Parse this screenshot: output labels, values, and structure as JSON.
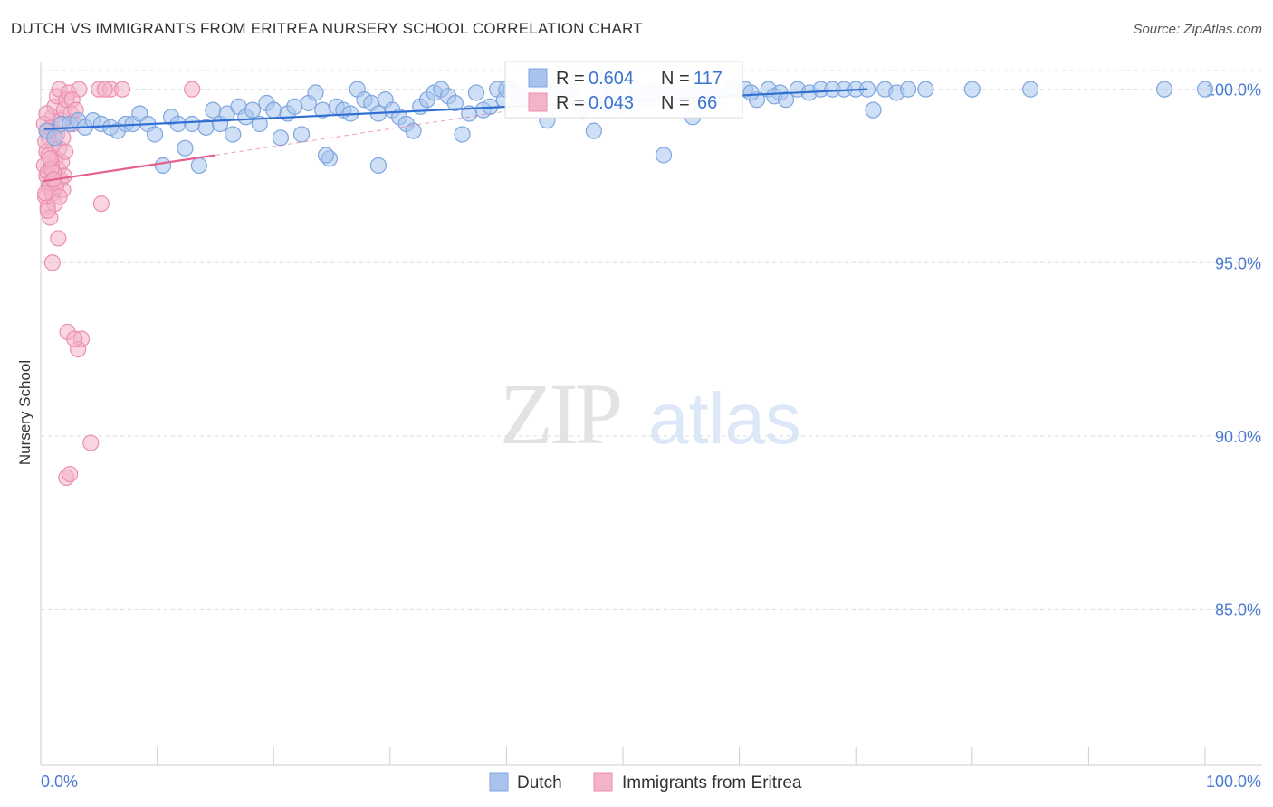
{
  "header": {
    "title": "DUTCH VS IMMIGRANTS FROM ERITREA NURSERY SCHOOL CORRELATION CHART",
    "source": "Source: ZipAtlas.com"
  },
  "watermark": {
    "zip": "ZIP",
    "atlas": "atlas"
  },
  "legend_box": {
    "r_label": "R =",
    "n_label": "N =",
    "rows": [
      {
        "r": "0.604",
        "n": "117"
      },
      {
        "r": "0.043",
        "n": "66"
      }
    ]
  },
  "bottom_legend": [
    "Dutch",
    "Immigrants from Eritrea"
  ],
  "colors": {
    "dutch_fill": "#a8c4ec",
    "dutch_stroke": "#7fa6df",
    "dutch_line": "#2e6fd1",
    "eritrea_fill": "#f4b3c8",
    "eritrea_stroke": "#ea8fb0",
    "eritrea_line": "#e5608e",
    "tick_text": "#4a7bd0"
  },
  "chart_data": {
    "type": "scatter",
    "ylabel": "Nursery School",
    "xlim": [
      0,
      100
    ],
    "ylim": [
      80.5,
      100.8
    ],
    "y_ticks": [
      {
        "v": 85,
        "label": "85.0%"
      },
      {
        "v": 90,
        "label": "90.0%"
      },
      {
        "v": 95,
        "label": "95.0%"
      },
      {
        "v": 100,
        "label": "100.0%"
      }
    ],
    "x_tick_labels": [
      {
        "v": 0,
        "label": "0.0%"
      },
      {
        "v": 100,
        "label": "100.0%"
      }
    ],
    "x_minor_ticks": [
      0,
      10,
      20,
      30,
      40,
      50,
      60,
      70,
      80,
      90,
      100
    ],
    "grid": "horizontal dashed",
    "legend_position": "bottom",
    "series": [
      {
        "name": "Dutch",
        "r": 0.604,
        "n": 117,
        "trend": {
          "x": [
            0.3,
            71
          ],
          "y": [
            98.85,
            100.0
          ],
          "extrapolated_x": null
        },
        "points": [
          [
            0.5,
            98.8
          ],
          [
            1.2,
            98.6
          ],
          [
            1.8,
            99.0
          ],
          [
            2.5,
            99.0
          ],
          [
            3.2,
            99.1
          ],
          [
            3.8,
            98.9
          ],
          [
            4.5,
            99.1
          ],
          [
            5.2,
            99.0
          ],
          [
            6.0,
            98.9
          ],
          [
            6.6,
            98.8
          ],
          [
            7.3,
            99.0
          ],
          [
            7.9,
            99.0
          ],
          [
            8.5,
            99.3
          ],
          [
            9.2,
            99.0
          ],
          [
            9.8,
            98.7
          ],
          [
            10.5,
            97.8
          ],
          [
            11.2,
            99.2
          ],
          [
            11.8,
            99.0
          ],
          [
            12.4,
            98.3
          ],
          [
            13.0,
            99.0
          ],
          [
            13.6,
            97.8
          ],
          [
            14.2,
            98.9
          ],
          [
            14.8,
            99.4
          ],
          [
            15.4,
            99.0
          ],
          [
            16.0,
            99.3
          ],
          [
            16.5,
            98.7
          ],
          [
            17.0,
            99.5
          ],
          [
            17.6,
            99.2
          ],
          [
            18.2,
            99.4
          ],
          [
            18.8,
            99.0
          ],
          [
            19.4,
            99.6
          ],
          [
            20.0,
            99.4
          ],
          [
            20.6,
            98.6
          ],
          [
            21.2,
            99.3
          ],
          [
            21.8,
            99.5
          ],
          [
            22.4,
            98.7
          ],
          [
            23.0,
            99.6
          ],
          [
            23.6,
            99.9
          ],
          [
            24.2,
            99.4
          ],
          [
            24.8,
            98.0
          ],
          [
            25.4,
            99.5
          ],
          [
            26.0,
            99.4
          ],
          [
            26.6,
            99.3
          ],
          [
            27.2,
            100.0
          ],
          [
            27.8,
            99.7
          ],
          [
            28.4,
            99.6
          ],
          [
            29.0,
            99.3
          ],
          [
            29.6,
            99.7
          ],
          [
            30.2,
            99.4
          ],
          [
            30.8,
            99.2
          ],
          [
            31.4,
            99.0
          ],
          [
            32.0,
            98.8
          ],
          [
            32.6,
            99.5
          ],
          [
            33.2,
            99.7
          ],
          [
            33.8,
            99.9
          ],
          [
            34.4,
            100.0
          ],
          [
            35.0,
            99.8
          ],
          [
            35.6,
            99.6
          ],
          [
            36.2,
            98.7
          ],
          [
            36.8,
            99.3
          ],
          [
            37.4,
            99.9
          ],
          [
            38.0,
            99.4
          ],
          [
            38.6,
            99.5
          ],
          [
            39.2,
            100.0
          ],
          [
            39.8,
            99.7
          ],
          [
            40.4,
            100.0
          ],
          [
            41.0,
            99.8
          ],
          [
            41.6,
            99.7
          ],
          [
            42.2,
            99.9
          ],
          [
            43.0,
            100.0
          ],
          [
            43.8,
            100.0
          ],
          [
            44.5,
            100.0
          ],
          [
            45.5,
            100.0
          ],
          [
            46.5,
            99.4
          ],
          [
            47.5,
            98.8
          ],
          [
            48.0,
            100.0
          ],
          [
            48.6,
            99.6
          ],
          [
            49.2,
            100.0
          ],
          [
            49.8,
            99.5
          ],
          [
            50.4,
            99.7
          ],
          [
            51.2,
            100.0
          ],
          [
            52.0,
            99.7
          ],
          [
            53.0,
            100.0
          ],
          [
            54.0,
            100.0
          ],
          [
            55.0,
            100.0
          ],
          [
            55.8,
            99.8
          ],
          [
            56.6,
            100.0
          ],
          [
            57.5,
            100.0
          ],
          [
            58.5,
            99.8
          ],
          [
            59.5,
            100.0
          ],
          [
            60.5,
            100.0
          ],
          [
            61.5,
            99.7
          ],
          [
            62.5,
            100.0
          ],
          [
            63.5,
            99.9
          ],
          [
            65.0,
            100.0
          ],
          [
            66.0,
            99.9
          ],
          [
            67.0,
            100.0
          ],
          [
            68.0,
            100.0
          ],
          [
            69.0,
            100.0
          ],
          [
            70.0,
            100.0
          ],
          [
            71.0,
            100.0
          ],
          [
            72.5,
            100.0
          ],
          [
            73.5,
            99.9
          ],
          [
            74.5,
            100.0
          ],
          [
            76.0,
            100.0
          ],
          [
            80.0,
            100.0
          ],
          [
            85.0,
            100.0
          ],
          [
            96.5,
            100.0
          ],
          [
            100.0,
            100.0
          ],
          [
            63.0,
            99.8
          ],
          [
            64.0,
            99.7
          ],
          [
            61.0,
            99.9
          ],
          [
            52.5,
            99.9
          ],
          [
            53.5,
            98.1
          ],
          [
            24.5,
            98.1
          ],
          [
            29.0,
            97.8
          ],
          [
            43.5,
            99.1
          ],
          [
            56.0,
            99.2
          ],
          [
            71.5,
            99.4
          ],
          [
            45.0,
            100.0
          ],
          [
            40.0,
            100.0
          ]
        ]
      },
      {
        "name": "Immigrants from Eritrea",
        "r": 0.043,
        "n": 66,
        "trend": {
          "x": [
            0.2,
            15
          ],
          "y": [
            97.35,
            98.1
          ],
          "extrapolated_x": [
            15,
            57
          ]
        },
        "points": [
          [
            0.3,
            97.8
          ],
          [
            0.5,
            97.5
          ],
          [
            0.7,
            97.2
          ],
          [
            0.4,
            96.9
          ],
          [
            0.6,
            96.6
          ],
          [
            0.8,
            96.3
          ],
          [
            0.5,
            98.2
          ],
          [
            0.7,
            98.6
          ],
          [
            0.9,
            98.9
          ],
          [
            1.0,
            99.2
          ],
          [
            1.2,
            99.5
          ],
          [
            1.4,
            99.8
          ],
          [
            1.6,
            100.0
          ],
          [
            1.1,
            98.4
          ],
          [
            1.3,
            98.0
          ],
          [
            1.5,
            97.7
          ],
          [
            1.7,
            97.4
          ],
          [
            1.9,
            97.1
          ],
          [
            0.6,
            97.6
          ],
          [
            0.8,
            97.3
          ],
          [
            1.0,
            97.0
          ],
          [
            1.2,
            96.7
          ],
          [
            0.4,
            98.5
          ],
          [
            0.6,
            98.8
          ],
          [
            1.8,
            99.1
          ],
          [
            2.0,
            99.4
          ],
          [
            2.2,
            99.7
          ],
          [
            2.4,
            99.9
          ],
          [
            2.6,
            99.3
          ],
          [
            2.8,
            99.0
          ],
          [
            1.4,
            98.7
          ],
          [
            1.6,
            98.3
          ],
          [
            1.8,
            97.9
          ],
          [
            2.0,
            97.5
          ],
          [
            0.9,
            97.9
          ],
          [
            1.1,
            97.6
          ],
          [
            1.3,
            97.2
          ],
          [
            1.5,
            95.7
          ],
          [
            1.0,
            95.0
          ],
          [
            2.3,
            93.0
          ],
          [
            3.5,
            92.8
          ],
          [
            3.2,
            92.5
          ],
          [
            2.9,
            92.8
          ],
          [
            4.3,
            89.8
          ],
          [
            2.2,
            88.8
          ],
          [
            2.5,
            88.9
          ],
          [
            5.0,
            100.0
          ],
          [
            6.0,
            100.0
          ],
          [
            7.0,
            100.0
          ],
          [
            5.5,
            100.0
          ],
          [
            13.0,
            100.0
          ],
          [
            3.3,
            100.0
          ],
          [
            5.2,
            96.7
          ],
          [
            2.7,
            99.7
          ],
          [
            3.0,
            99.4
          ],
          [
            0.3,
            99.0
          ],
          [
            0.5,
            99.3
          ],
          [
            0.7,
            98.1
          ],
          [
            0.9,
            97.7
          ],
          [
            1.1,
            97.4
          ],
          [
            0.4,
            97.0
          ],
          [
            0.6,
            96.5
          ],
          [
            1.9,
            98.6
          ],
          [
            2.1,
            98.2
          ],
          [
            1.6,
            96.9
          ],
          [
            0.8,
            98.0
          ]
        ]
      }
    ]
  }
}
